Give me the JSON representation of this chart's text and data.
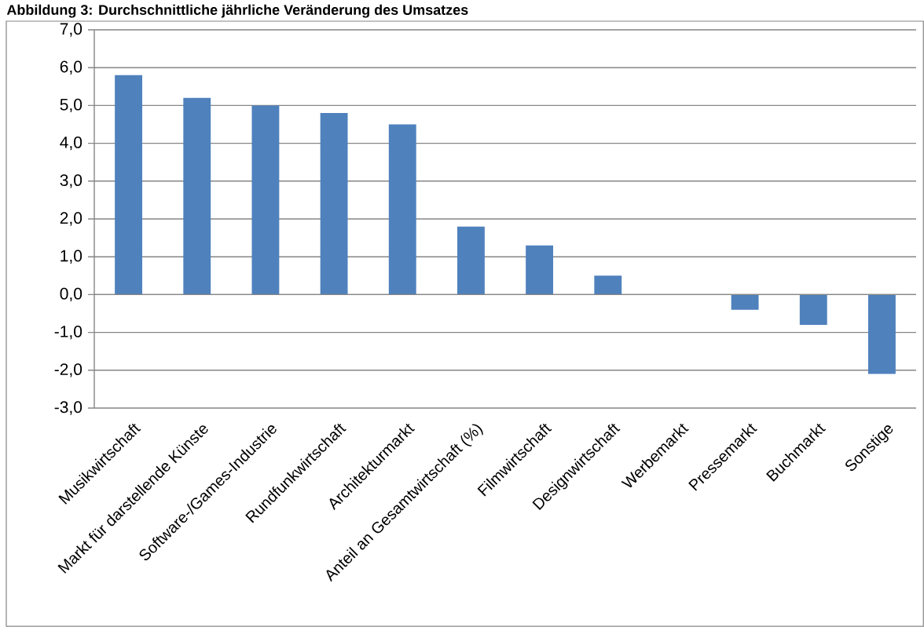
{
  "chart_data": {
    "type": "bar",
    "title": "Abbildung 3: Durchschnittliche jährliche Veränderung des Umsatzes",
    "categories": [
      "Musikwirtschaft",
      "Markt für darstellende Künste",
      "Software-/Games-Industrie",
      "Rundfunkwirtschaft",
      "Architekturmarkt",
      "Anteil an Gesamtwirtschaft (%)",
      "Filmwirtschaft",
      "Designwirtschaft",
      "Werbemarkt",
      "Pressemarkt",
      "Buchmarkt",
      "Sonstige"
    ],
    "values": [
      5.8,
      5.2,
      5.0,
      4.8,
      4.5,
      1.8,
      1.3,
      0.5,
      0,
      -0.4,
      -0.8,
      -2.1
    ],
    "color": "#4f81bd",
    "ylim": [
      -3,
      7
    ],
    "yticks": [
      {
        "value": -3,
        "label": "-3,0"
      },
      {
        "value": -2,
        "label": "-2,0"
      },
      {
        "value": -1,
        "label": "-1,0"
      },
      {
        "value": 0,
        "label": "0,0"
      },
      {
        "value": 1,
        "label": "1,0"
      },
      {
        "value": 2,
        "label": "2,0"
      },
      {
        "value": 3,
        "label": "3,0"
      },
      {
        "value": 4,
        "label": "4,0"
      },
      {
        "value": 5,
        "label": "5,0"
      },
      {
        "value": 6,
        "label": "6,0"
      },
      {
        "value": 7,
        "label": "7,0"
      }
    ],
    "grid": "y"
  }
}
